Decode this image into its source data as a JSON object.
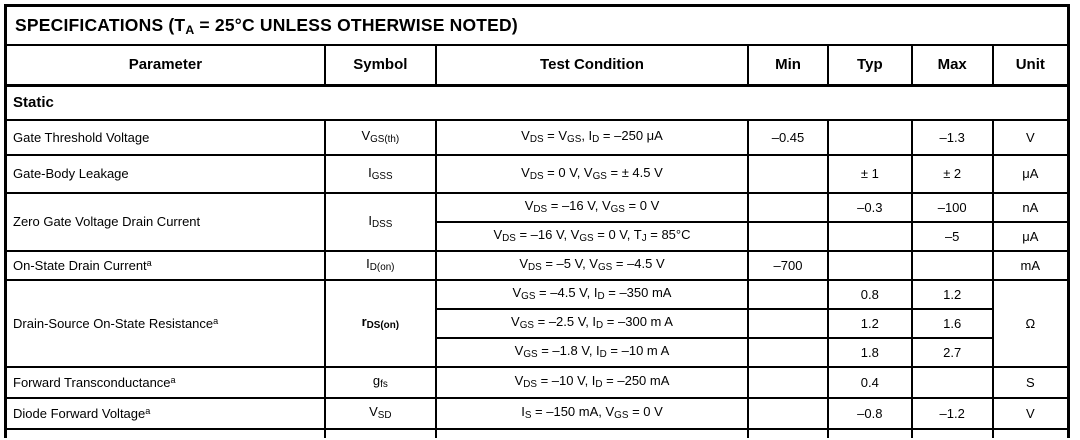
{
  "title": "SPECIFICATIONS (T_{A} = 25°C UNLESS OTHERWISE NOTED)",
  "columns": [
    "Parameter",
    "Symbol",
    "Test Condition",
    "Min",
    "Typ",
    "Max",
    "Unit"
  ],
  "section": "Static",
  "colors": {
    "border": "#000000",
    "text": "#000000",
    "background": "#ffffff"
  },
  "groups": [
    {
      "parameter": "Gate Threshold Voltage",
      "symbol": "V_{GS(th)}",
      "rows": [
        {
          "test": "V_{DS} = V_{GS}, I_{D} = –250 μA",
          "min": "–0.45",
          "typ": "",
          "max": "–1.3",
          "unit": "V"
        }
      ]
    },
    {
      "parameter": "Gate-Body Leakage",
      "symbol": "I_{GSS}",
      "rows": [
        {
          "test": "V_{DS} = 0 V, V_{GS} = ± 4.5 V",
          "min": "",
          "typ": "± 1",
          "max": "± 2",
          "unit": "μA"
        }
      ]
    },
    {
      "parameter": "Zero Gate Voltage Drain Current",
      "symbol": "I_{DSS}",
      "rows": [
        {
          "test": "V_{DS} = –16 V, V_{GS} = 0 V",
          "min": "",
          "typ": "–0.3",
          "max": "–100",
          "unit": "nA"
        },
        {
          "test": "V_{DS} = –16 V, V_{GS} = 0 V, T_{J} = 85°C",
          "min": "",
          "typ": "",
          "max": "–5",
          "unit": "μA"
        }
      ]
    },
    {
      "parameter": "On-State Drain Current^{a}",
      "symbol": "I_{D(on)}",
      "rows": [
        {
          "test": "V_{DS} = –5 V, V_{GS} = –4.5 V",
          "min": "–700",
          "typ": "",
          "max": "",
          "unit": "mA"
        }
      ]
    },
    {
      "parameter": "Drain-Source On-State Resistance^{a}",
      "symbol": "r_{DS(on)}",
      "shared_unit": "Ω",
      "rows": [
        {
          "test": "V_{GS} = –4.5 V,  I_{D} = –350 mA",
          "min": "",
          "typ": "0.8",
          "max": "1.2"
        },
        {
          "test": "V_{GS} = –2.5 V, I_{D} = –300 m A",
          "min": "",
          "typ": "1.2",
          "max": "1.6"
        },
        {
          "test": "V_{GS} =  –1.8 V, I_{D} = –10 m A",
          "min": "",
          "typ": "1.8",
          "max": "2.7"
        }
      ]
    },
    {
      "parameter": "Forward Transconductance^{a}",
      "symbol": "g_{fs}",
      "rows": [
        {
          "test": "V_{DS} = –10 V, I_{D} = –250 mA",
          "min": "",
          "typ": "0.4",
          "max": "",
          "unit": "S"
        }
      ]
    },
    {
      "parameter": "Diode Forward Voltage^{a}",
      "symbol": "V_{SD}",
      "rows": [
        {
          "test": "I_{S} = –150 mA, V_{GS} = 0 V",
          "min": "",
          "typ": "–0.8",
          "max": "–1.2",
          "unit": "V"
        }
      ]
    }
  ]
}
